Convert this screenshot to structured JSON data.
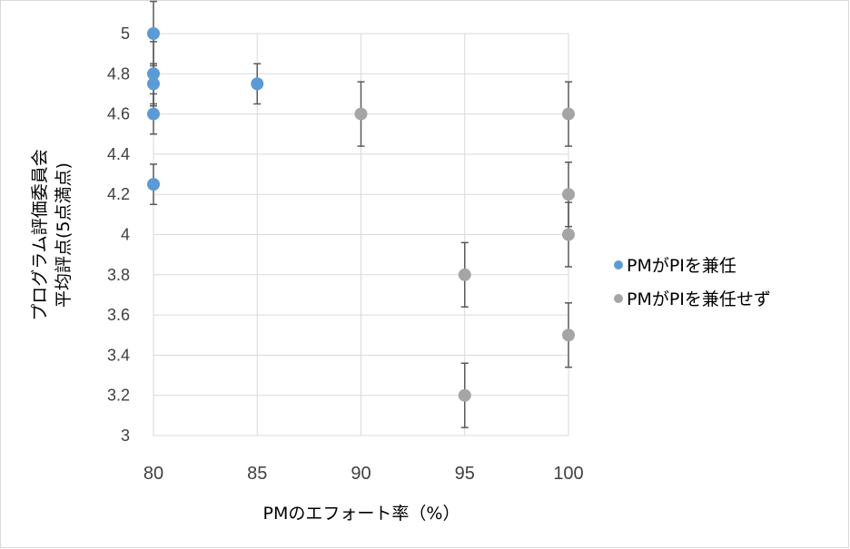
{
  "chart_data": {
    "type": "scatter",
    "xlabel": "PMのエフォート率（%）",
    "ylabel_lines": [
      "プログラム評価委員会",
      "平均評点(5点満点)"
    ],
    "xlim": [
      80,
      100
    ],
    "ylim": [
      3,
      5
    ],
    "xticks": [
      80,
      85,
      90,
      95,
      100
    ],
    "yticks": [
      3,
      3.2,
      3.4,
      3.6,
      3.8,
      4,
      4.2,
      4.4,
      4.6,
      4.8,
      5
    ],
    "grid": true,
    "legend_position": "right",
    "series": [
      {
        "name": "PMがPIを兼任",
        "color": "#5b9bd5",
        "points": [
          {
            "x": 80,
            "y": 5,
            "err": 0.16
          },
          {
            "x": 80,
            "y": 4.8,
            "err": 0.16
          },
          {
            "x": 80,
            "y": 4.75,
            "err": 0.1
          },
          {
            "x": 80,
            "y": 4.6,
            "err": 0.1
          },
          {
            "x": 80,
            "y": 4.25,
            "err": 0.1
          },
          {
            "x": 85,
            "y": 4.75,
            "err": 0.1
          }
        ]
      },
      {
        "name": "PMがPIを兼任せず",
        "color": "#a5a5a5",
        "points": [
          {
            "x": 90,
            "y": 4.6,
            "err": 0.16
          },
          {
            "x": 95,
            "y": 3.8,
            "err": 0.16
          },
          {
            "x": 95,
            "y": 3.2,
            "err": 0.16
          },
          {
            "x": 100,
            "y": 4.6,
            "err": 0.16
          },
          {
            "x": 100,
            "y": 4.2,
            "err": 0.16
          },
          {
            "x": 100,
            "y": 4,
            "err": 0.16
          },
          {
            "x": 100,
            "y": 3.5,
            "err": 0.16
          }
        ]
      }
    ]
  }
}
